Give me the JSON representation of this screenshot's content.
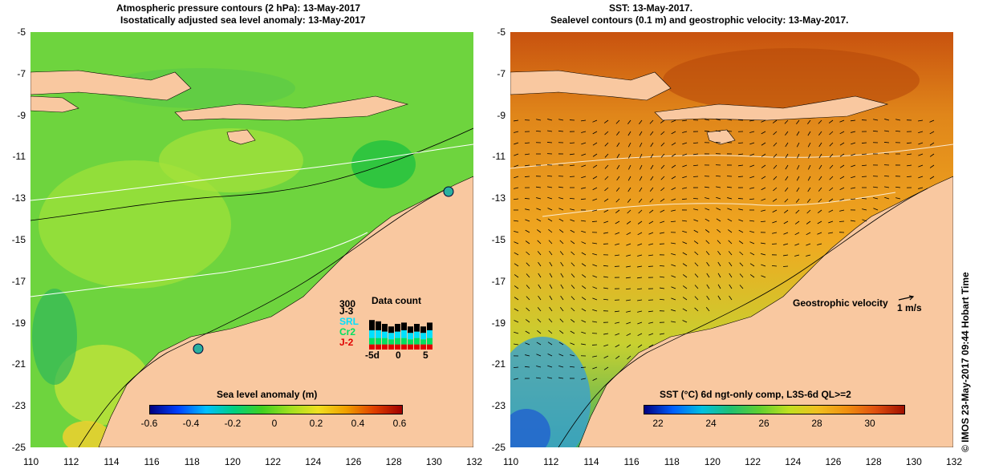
{
  "left_panel": {
    "title_line1": "Atmospheric pressure contours (2 hPa): 13-May-2017",
    "title_line2": "Isostatically adjusted sea level anomaly: 13-May-2017",
    "colorbar_title": "Sea level anomaly (m)",
    "colorbar_ticks": [
      "-0.6",
      "-0.4",
      "-0.2",
      "0",
      "0.2",
      "0.4",
      "0.6"
    ],
    "data_count": {
      "title": "Data count",
      "max_label": "300",
      "satellites": [
        "J-3",
        "SRL",
        "Cr2",
        "J-2"
      ],
      "satellite_colors": [
        "#000000",
        "#00e0ff",
        "#00e060",
        "#e00000"
      ],
      "x_ticks": [
        "-5d",
        "0",
        "5"
      ]
    }
  },
  "right_panel": {
    "title_line1": "SST: 13-May-2017.",
    "title_line2": "Sealevel contours (0.1 m) and geostrophic velocity: 13-May-2017.",
    "colorbar_title": "SST (°C) 6d ngt-only comp, L3S-6d QL>=2",
    "colorbar_ticks": [
      "22",
      "24",
      "26",
      "28",
      "30"
    ],
    "velocity_label": "Geostrophic velocity",
    "velocity_scale": "1 m/s"
  },
  "axes": {
    "x_ticks": [
      "110",
      "112",
      "114",
      "116",
      "118",
      "120",
      "122",
      "124",
      "126",
      "128",
      "130",
      "132"
    ],
    "y_ticks": [
      "-5",
      "-7",
      "-9",
      "-11",
      "-13",
      "-15",
      "-17",
      "-19",
      "-21",
      "-23",
      "-25"
    ]
  },
  "credit": "© IMOS 23-May-2017 09:44 Hobart Time",
  "colors": {
    "land": "#f9c8a0",
    "sea_green": "#5fd04a",
    "sst_orange": "#e08a1a"
  }
}
